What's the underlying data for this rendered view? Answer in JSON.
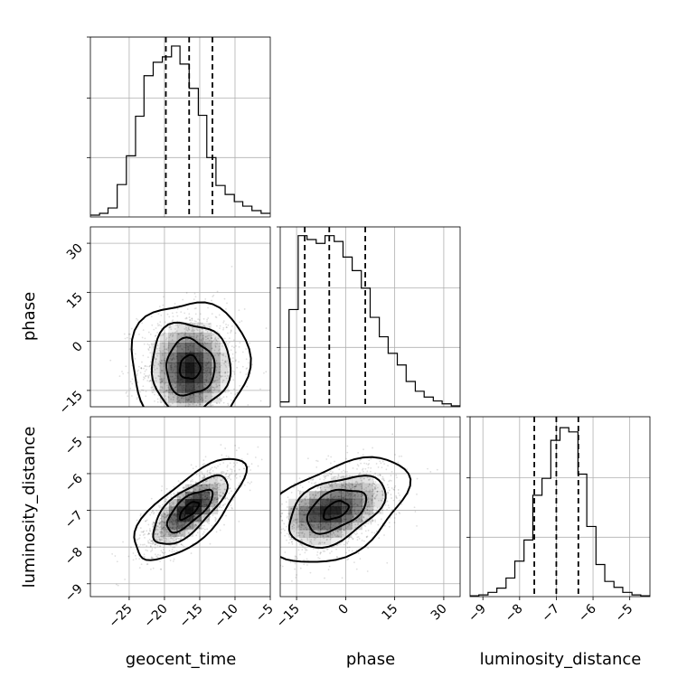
{
  "chart_data": {
    "type": "corner",
    "parameters": [
      "geocent_time",
      "phase",
      "luminosity_distance"
    ],
    "ranges": {
      "geocent_time": [
        -30.5,
        -5
      ],
      "phase": [
        -20,
        35
      ],
      "luminosity_distance": [
        -9.35,
        -4.45
      ]
    },
    "ticks": {
      "geocent_time": [
        -25,
        -20,
        -15,
        -10,
        -5
      ],
      "phase": [
        -15,
        0,
        15,
        30
      ],
      "luminosity_distance": [
        -9,
        -8,
        -7,
        -6,
        -5
      ]
    },
    "grid": true,
    "quantiles": {
      "geocent_time": [
        -19.8,
        -16.5,
        -13.2
      ],
      "phase": [
        -12.5,
        -5.0,
        6.0
      ],
      "luminosity_distance": [
        -7.6,
        -7.0,
        -6.4
      ]
    },
    "histograms": [
      {
        "parameter": "geocent_time",
        "bin_edges": [
          -30.5,
          -29.2,
          -28.0,
          -26.7,
          -25.4,
          -24.1,
          -22.9,
          -21.6,
          -20.3,
          -19.0,
          -17.8,
          -16.5,
          -15.2,
          -14.0,
          -12.7,
          -11.4,
          -10.1,
          -8.9,
          -7.6,
          -6.3,
          -5.0
        ],
        "counts": [
          2,
          4,
          10,
          36,
          68,
          112,
          157,
          172,
          178,
          190,
          170,
          143,
          113,
          66,
          35,
          25,
          17,
          12,
          7,
          4
        ],
        "ymax": 200
      },
      {
        "parameter": "phase",
        "bin_edges": [
          -20.0,
          -17.3,
          -14.5,
          -11.8,
          -9.0,
          -6.3,
          -3.5,
          -0.8,
          2.0,
          4.8,
          7.5,
          10.3,
          13.0,
          15.8,
          18.5,
          21.3,
          24.0,
          26.8,
          29.5,
          32.3,
          35.0
        ],
        "counts": [
          5,
          100,
          176,
          172,
          168,
          176,
          170,
          154,
          140,
          122,
          92,
          72,
          55,
          43,
          26,
          16,
          10,
          6,
          3,
          1
        ],
        "ymax": 185
      },
      {
        "parameter": "luminosity_distance",
        "bin_edges": [
          -9.35,
          -9.11,
          -8.86,
          -8.62,
          -8.37,
          -8.13,
          -7.88,
          -7.64,
          -7.39,
          -7.15,
          -6.9,
          -6.66,
          -6.41,
          -6.17,
          -5.92,
          -5.68,
          -5.43,
          -5.19,
          -4.94,
          -4.7,
          -4.45
        ],
        "counts": [
          1,
          2,
          5,
          10,
          22,
          42,
          67,
          120,
          140,
          185,
          200,
          195,
          145,
          83,
          38,
          18,
          11,
          5,
          2,
          1
        ],
        "ymax": 213
      }
    ],
    "pairs": [
      {
        "x": "geocent_time",
        "y": "phase",
        "center": [
          -16.4,
          -8
        ],
        "spread": [
          3.6,
          9
        ],
        "correlation": 0,
        "peaks": [
          [
            -16.4,
            -14
          ],
          [
            -16.4,
            -6
          ]
        ]
      },
      {
        "x": "geocent_time",
        "y": "luminosity_distance",
        "center": [
          -16.5,
          -7.0
        ],
        "spread": [
          3.4,
          0.6
        ],
        "correlation": 0.72,
        "peaks": [
          [
            -17.3,
            -7.05
          ],
          [
            -15.3,
            -6.75
          ]
        ]
      },
      {
        "x": "phase",
        "y": "luminosity_distance",
        "center": [
          -3,
          -7.0
        ],
        "spread": [
          9.5,
          0.62
        ],
        "correlation": 0.45,
        "peaks": [
          [
            -12.8,
            -7.0
          ],
          [
            -5,
            -7.0
          ]
        ]
      }
    ]
  },
  "labels": {
    "xlabel_0": "geocent_time",
    "xlabel_1": "phase",
    "xlabel_2": "luminosity_distance",
    "ylabel_1": "phase",
    "ylabel_2": "luminosity_distance"
  },
  "colors": {
    "line": "#000000",
    "grid": "#b0b0b0",
    "scatter": "#000000",
    "density": "#000000"
  }
}
